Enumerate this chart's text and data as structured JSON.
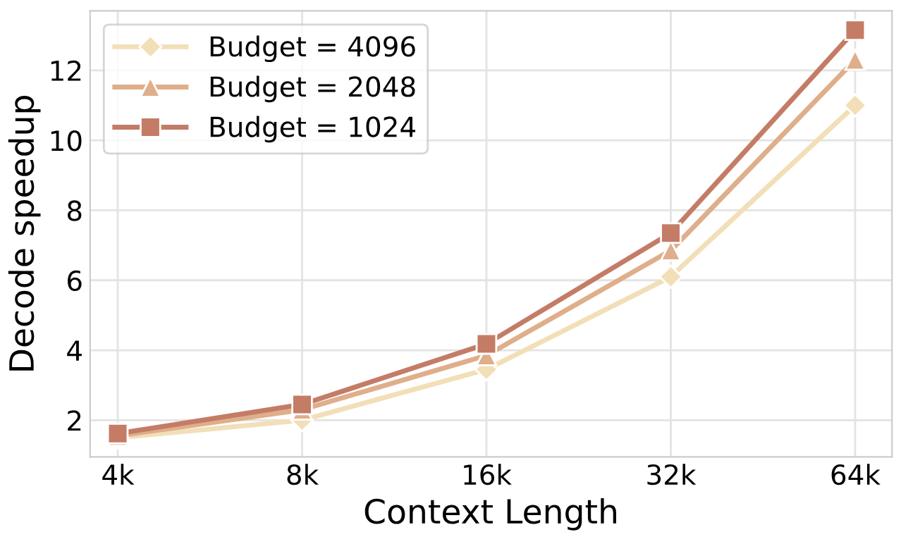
{
  "chart_data": {
    "type": "line",
    "xlabel": "Context Length",
    "ylabel": "Decode speedup",
    "categories": [
      "4k",
      "8k",
      "16k",
      "32k",
      "64k"
    ],
    "series": [
      {
        "name": "Budget = 4096",
        "color": "#f2dfb8",
        "marker": "diamond",
        "values": [
          1.5,
          2.0,
          3.45,
          6.1,
          11.0
        ]
      },
      {
        "name": "Budget = 2048",
        "color": "#dfae8a",
        "marker": "triangle",
        "values": [
          1.55,
          2.3,
          3.85,
          6.85,
          12.3
        ]
      },
      {
        "name": "Budget = 1024",
        "color": "#c47c66",
        "marker": "square",
        "values": [
          1.62,
          2.45,
          4.18,
          7.35,
          13.15
        ]
      }
    ],
    "ylim": [
      0.95,
      13.7
    ],
    "yticks": [
      2,
      4,
      6,
      8,
      10,
      12
    ],
    "grid": true,
    "legend": "top left",
    "line_style": "solid"
  }
}
